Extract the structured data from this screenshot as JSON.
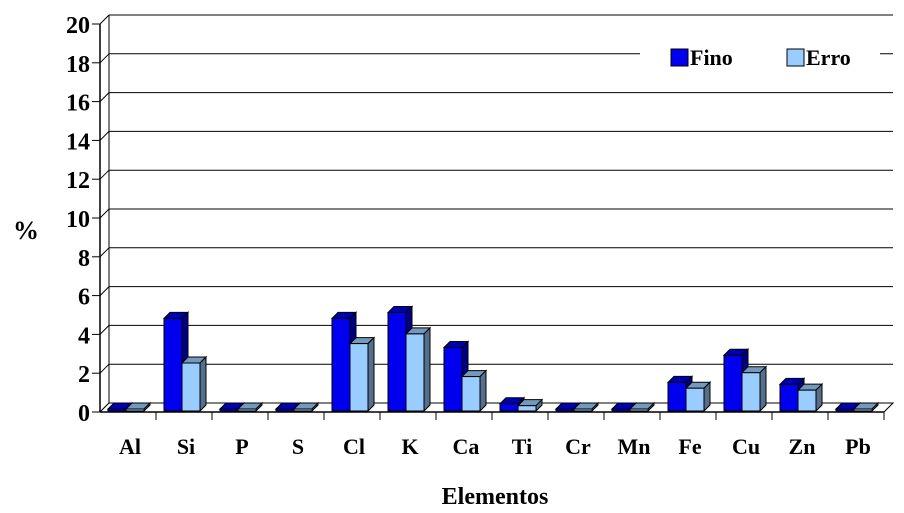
{
  "chart_data": {
    "type": "bar",
    "title": "",
    "xlabel": "Elementos",
    "ylabel": "%",
    "ylim": [
      0,
      20
    ],
    "yticks": [
      "0",
      "2",
      "4",
      "6",
      "8",
      "10",
      "12",
      "14",
      "16",
      "18",
      "20"
    ],
    "grid": true,
    "legend_position": "top-right",
    "categories": [
      "Al",
      "Si",
      "P",
      "S",
      "Cl",
      "K",
      "Ca",
      "Ti",
      "Cr",
      "Mn",
      "Fe",
      "Cu",
      "Zn",
      "Pb"
    ],
    "series": [
      {
        "name": "Fino",
        "color": "#0000ee",
        "values": [
          0.0,
          4.8,
          0.0,
          0.0,
          4.8,
          5.1,
          3.3,
          0.4,
          0.0,
          0.0,
          1.5,
          2.9,
          1.4,
          0.1
        ]
      },
      {
        "name": "Erro",
        "color": "#99ccff",
        "values": [
          0.0,
          2.5,
          0.0,
          0.0,
          3.5,
          4.0,
          1.8,
          0.3,
          0.0,
          0.0,
          1.2,
          2.0,
          1.1,
          0.1
        ]
      }
    ]
  }
}
